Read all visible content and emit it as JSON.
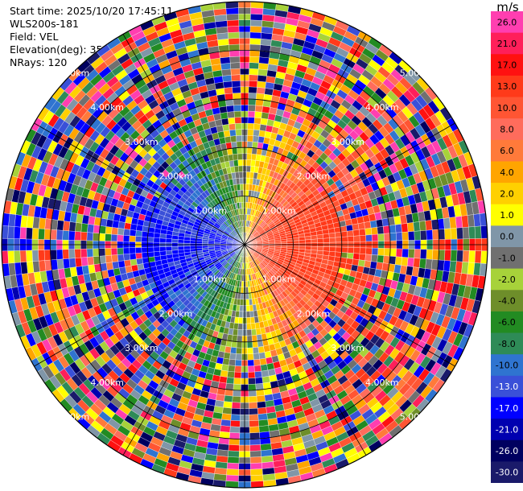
{
  "header": {
    "start_time": "Start time: 2025/10/20 17:45:11",
    "station": "WLS200s-181",
    "field": "Field: VEL",
    "elevation": "Elevation(deg): 35.00",
    "nrays": "NRays: 120"
  },
  "chart_data": {
    "type": "heatmap",
    "projection": "polar-ppi",
    "grid": true,
    "range_ring_labels": [
      "1.00km",
      "2.00km",
      "3.00km",
      "4.00km",
      "5.00km"
    ],
    "colorbar": {
      "unit": "m/s",
      "placement": "right",
      "ticks": [
        "26.0",
        "21.0",
        "17.0",
        "13.0",
        "10.0",
        "8.0",
        "6.0",
        "4.0",
        "2.0",
        "1.0",
        "0.0",
        "-1.0",
        "-2.0",
        "-4.0",
        "-6.0",
        "-8.0",
        "-10.0",
        "-13.0",
        "-17.0",
        "-21.0",
        "-26.0",
        "-30.0"
      ],
      "colors": [
        "#ff3eb0",
        "#ff1f5a",
        "#ff1111",
        "#ff3a1a",
        "#ff5533",
        "#ff6c5c",
        "#ff7a3a",
        "#ffa500",
        "#ffd000",
        "#ffff00",
        "#8096a8",
        "#707070",
        "#a7d23a",
        "#6e8e2a",
        "#228b22",
        "#2e8b57",
        "#2f74d0",
        "#3a50d8",
        "#0000ff",
        "#0000b0",
        "#000060",
        "#1a1a6a"
      ]
    },
    "rays": 120,
    "range_max_km": 5.0
  }
}
